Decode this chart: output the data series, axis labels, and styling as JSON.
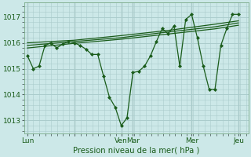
{
  "bg_color": "#cce8e8",
  "grid_color": "#aacccc",
  "line_color": "#1a5c1a",
  "marker_color": "#1a5c1a",
  "xtick_positions": [
    0,
    0.333,
    0.667,
    0.75,
    1.167,
    1.5
  ],
  "xtick_labels": [
    "Lun",
    "",
    "Ven",
    "Mar",
    "Mer",
    "Jeu"
  ],
  "ytick_positions": [
    1013,
    1014,
    1015,
    1016,
    1017
  ],
  "ytick_labels": [
    "1013",
    "1014",
    "1015",
    "1016",
    "1017"
  ],
  "xlabel": "Pression niveau de la mer( hPa )",
  "ylim": [
    1012.5,
    1017.55
  ],
  "xlim": [
    -0.02,
    1.57
  ],
  "series1_x": [
    0,
    0.042,
    0.083,
    0.125,
    0.167,
    0.208,
    0.25,
    0.292,
    0.333,
    0.375,
    0.417,
    0.458,
    0.5,
    0.542,
    0.583,
    0.625,
    0.667,
    0.708,
    0.75,
    0.792,
    0.833,
    0.875,
    0.917,
    0.958,
    1.0,
    1.042,
    1.083,
    1.125,
    1.167,
    1.208,
    1.25,
    1.292,
    1.333,
    1.375,
    1.417,
    1.458,
    1.5
  ],
  "series1_y": [
    1015.5,
    1015.0,
    1015.1,
    1015.9,
    1016.0,
    1015.8,
    1015.95,
    1016.05,
    1016.0,
    1015.9,
    1015.75,
    1015.55,
    1015.55,
    1014.7,
    1013.9,
    1013.5,
    1012.8,
    1013.1,
    1014.85,
    1014.9,
    1015.1,
    1015.5,
    1016.05,
    1016.55,
    1016.35,
    1016.65,
    1015.1,
    1016.9,
    1017.1,
    1016.2,
    1015.1,
    1014.2,
    1014.2,
    1015.9,
    1016.55,
    1017.1,
    1017.1
  ],
  "series2_x": [
    0,
    0.333,
    0.667,
    1.0,
    1.333,
    1.5
  ],
  "series2_y": [
    1016.0,
    1016.1,
    1016.28,
    1016.48,
    1016.72,
    1016.85
  ],
  "series3_x": [
    0,
    0.333,
    0.667,
    1.0,
    1.333,
    1.5
  ],
  "series3_y": [
    1015.9,
    1016.05,
    1016.2,
    1016.42,
    1016.62,
    1016.77
  ],
  "series4_x": [
    0,
    0.333,
    0.667,
    1.0,
    1.333,
    1.5
  ],
  "series4_y": [
    1015.8,
    1015.98,
    1016.14,
    1016.34,
    1016.54,
    1016.68
  ]
}
